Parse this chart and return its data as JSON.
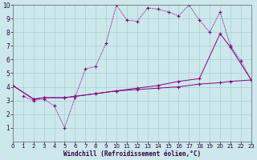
{
  "background_color": "#cce8eb",
  "grid_color": "#a8cfd4",
  "line_color": "#880088",
  "xlabel": "Windchill (Refroidissement éolien,°C)",
  "xlim": [
    0,
    23
  ],
  "ylim": [
    0,
    10
  ],
  "xticks": [
    0,
    1,
    2,
    3,
    4,
    5,
    6,
    7,
    8,
    9,
    10,
    11,
    12,
    13,
    14,
    15,
    16,
    17,
    18,
    19,
    20,
    21,
    22,
    23
  ],
  "yticks": [
    1,
    2,
    3,
    4,
    5,
    6,
    7,
    8,
    9,
    10
  ],
  "line1_x": [
    1,
    2,
    3,
    4,
    5,
    6,
    7,
    8,
    9,
    10,
    11,
    12,
    13,
    14,
    15,
    16,
    17,
    18,
    19,
    20,
    21,
    22,
    23
  ],
  "line1_y": [
    3.3,
    3.0,
    3.1,
    2.6,
    1.0,
    3.2,
    5.3,
    5.5,
    7.2,
    10.0,
    8.9,
    8.8,
    9.8,
    9.7,
    9.5,
    9.2,
    10.0,
    8.9,
    8.0,
    9.5,
    7.0,
    5.9,
    4.5
  ],
  "line2_x": [
    0,
    2,
    3,
    5,
    6,
    8,
    10,
    12,
    14,
    16,
    18,
    20,
    21,
    23
  ],
  "line2_y": [
    4.1,
    3.1,
    3.2,
    3.2,
    3.3,
    3.5,
    3.7,
    3.9,
    4.1,
    4.4,
    4.6,
    7.9,
    6.9,
    4.5
  ],
  "line3_x": [
    0,
    2,
    3,
    5,
    6,
    8,
    10,
    12,
    14,
    16,
    18,
    20,
    21,
    23
  ],
  "line3_y": [
    4.1,
    3.1,
    3.2,
    3.2,
    3.3,
    3.5,
    3.7,
    3.8,
    3.9,
    4.0,
    4.2,
    4.3,
    4.4,
    4.5
  ]
}
